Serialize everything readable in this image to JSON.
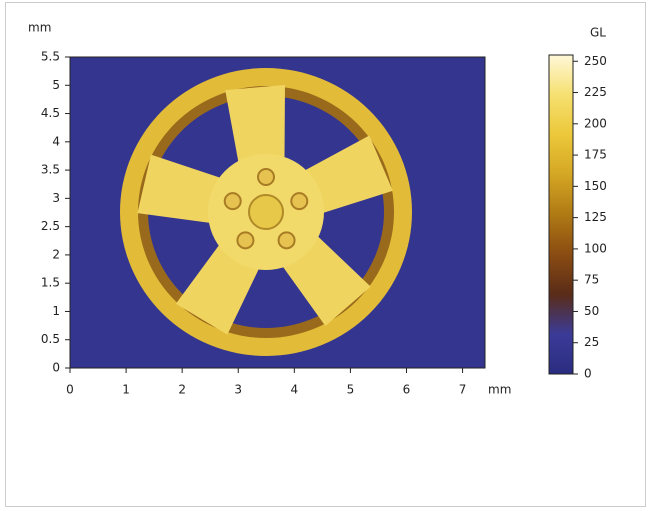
{
  "chart_data": {
    "type": "heatmap",
    "xlabel": "mm",
    "ylabel": "mm",
    "xlim": [
      0,
      7.4
    ],
    "xticks": [
      0,
      1,
      2,
      3,
      4,
      5,
      6,
      7
    ],
    "ylim": [
      0,
      5.5
    ],
    "yticks": [
      0,
      0.5,
      1,
      1.5,
      2,
      2.5,
      3,
      3.5,
      4,
      4.5,
      5,
      5.5
    ],
    "colorbar_label": "GL",
    "clim": [
      0,
      255
    ],
    "cticks": [
      0,
      25,
      50,
      75,
      100,
      125,
      150,
      175,
      200,
      225,
      250
    ],
    "colormap": [
      "#2a2c80",
      "#3b3b98",
      "#5a2c18",
      "#8a4c12",
      "#b07a14",
      "#d4a624",
      "#ecc83a",
      "#f6e070",
      "#fff8d8"
    ]
  }
}
